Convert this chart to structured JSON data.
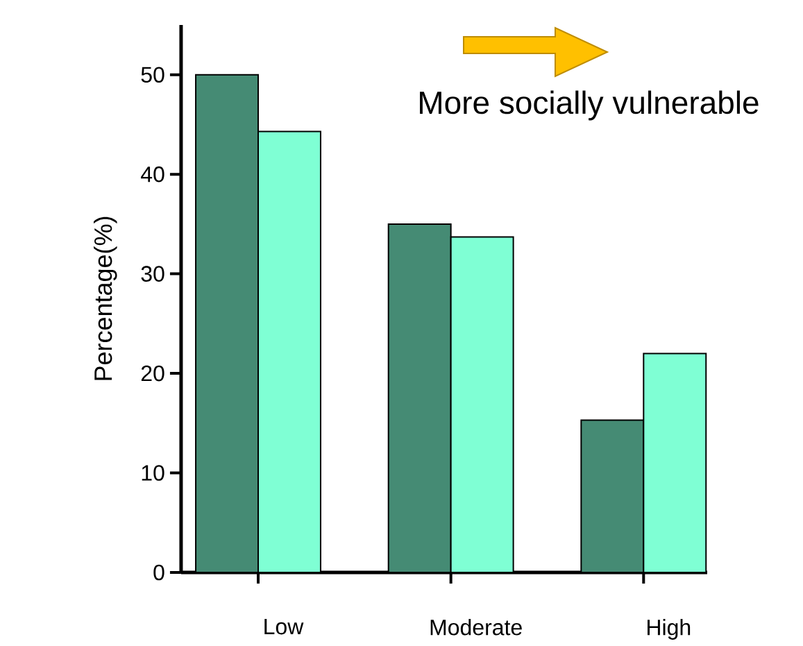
{
  "chart_data": {
    "type": "bar",
    "ylabel": "Percentage(%)",
    "categories": [
      "Low",
      "Moderate",
      "High"
    ],
    "series": [
      {
        "color": "#458b74",
        "values": [
          50,
          35,
          15.3
        ]
      },
      {
        "color": "#7fffd4",
        "values": [
          44.3,
          33.7,
          22
        ]
      }
    ],
    "ylim": [
      0,
      55
    ],
    "yticks": [
      0,
      10,
      20,
      30,
      40,
      50
    ],
    "grid": false,
    "annotations": [
      "More socially vulnerable"
    ]
  }
}
